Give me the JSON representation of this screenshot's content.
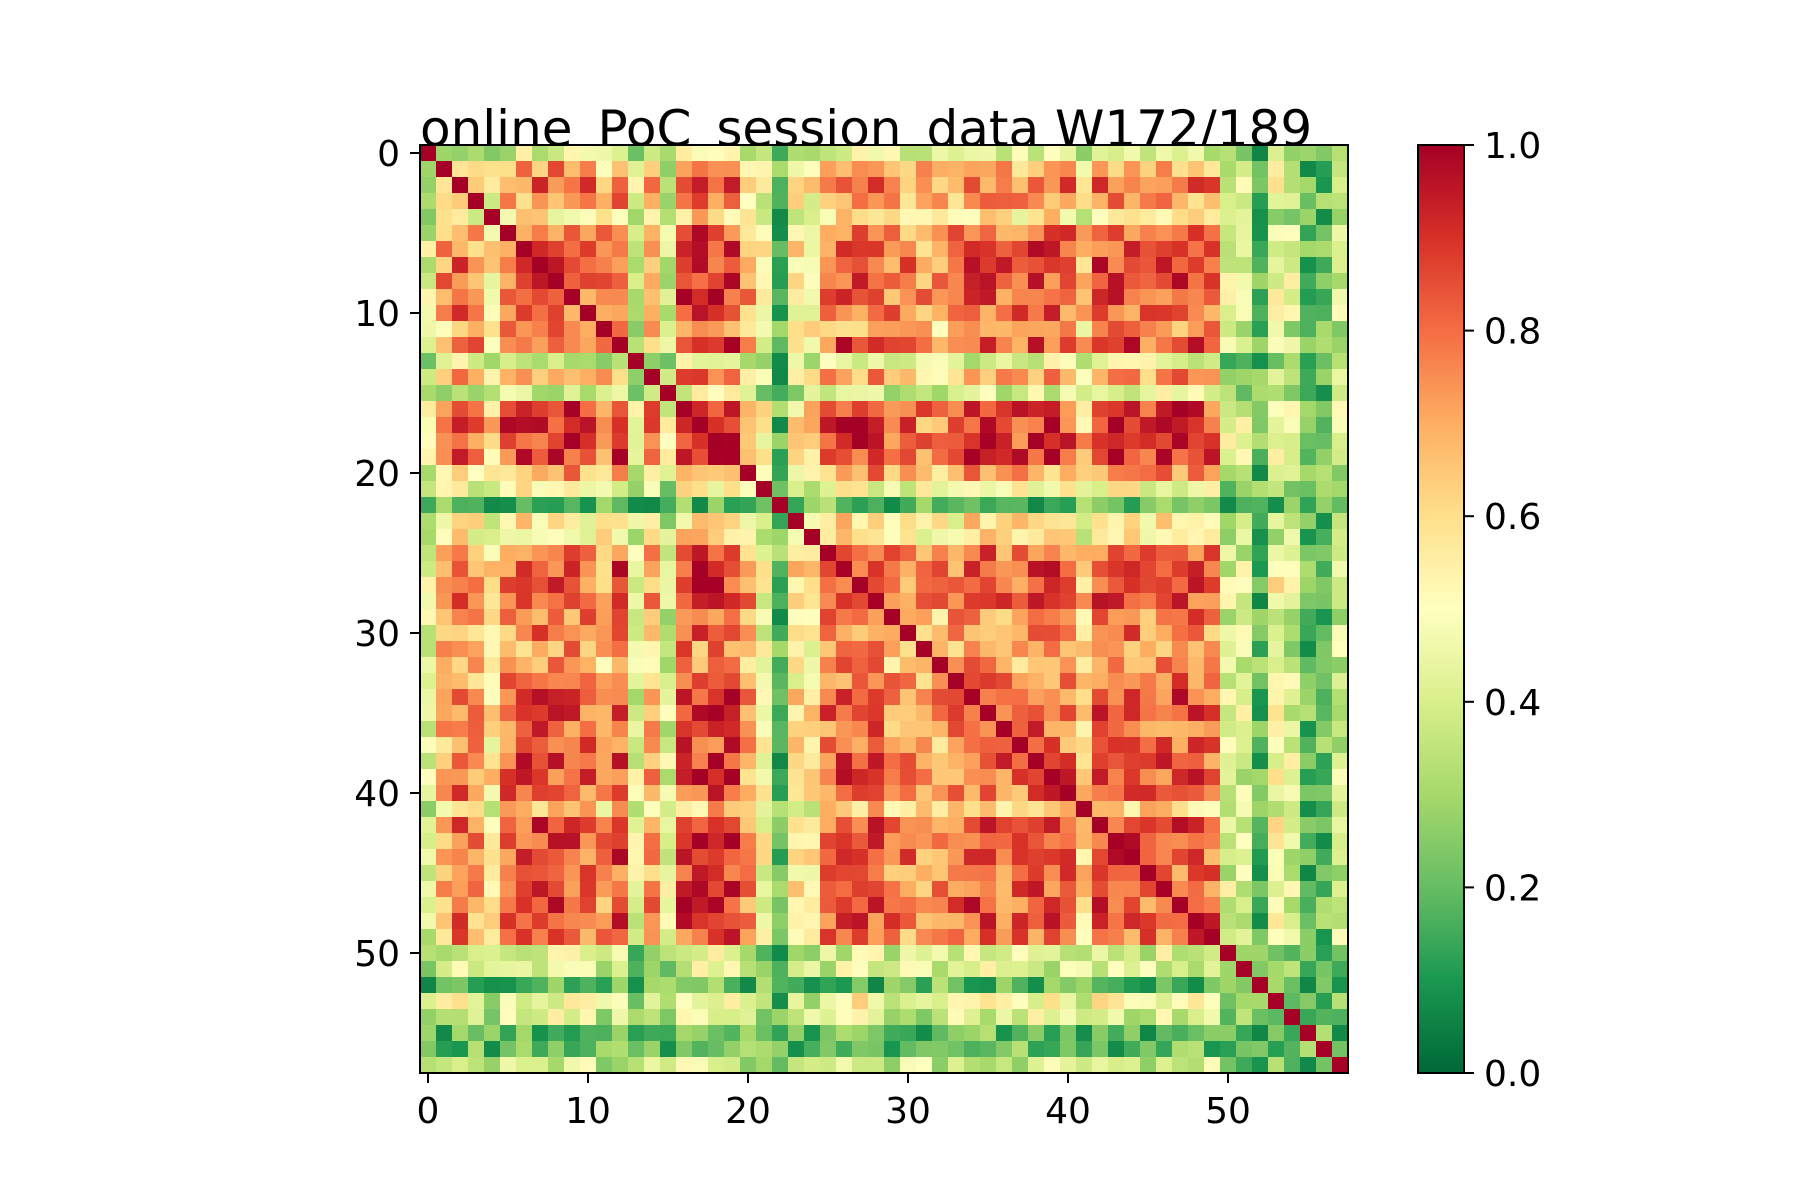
{
  "chart_data": {
    "type": "heatmap",
    "title": "online_PoC_session_data W172/189",
    "n": 58,
    "x_ticks": [
      0,
      10,
      20,
      30,
      40,
      50
    ],
    "y_ticks": [
      0,
      10,
      20,
      30,
      40,
      50
    ],
    "xlabel": "",
    "ylabel": "",
    "colormap": "RdYlGn_r",
    "value_range": [
      0.0,
      1.0
    ],
    "colorbar_ticks": [
      "0.0",
      "0.2",
      "0.4",
      "0.6",
      "0.8",
      "1.0"
    ],
    "diagonal_value": 1.0,
    "colormap_stops": [
      {
        "v": 0.0,
        "color": "#006837"
      },
      {
        "v": 0.1,
        "color": "#1a9850"
      },
      {
        "v": 0.2,
        "color": "#66bd63"
      },
      {
        "v": 0.3,
        "color": "#a6d96a"
      },
      {
        "v": 0.4,
        "color": "#d9ef8b"
      },
      {
        "v": 0.5,
        "color": "#ffffbf"
      },
      {
        "v": 0.6,
        "color": "#fee08b"
      },
      {
        "v": 0.7,
        "color": "#fdae61"
      },
      {
        "v": 0.8,
        "color": "#f46d43"
      },
      {
        "v": 0.9,
        "color": "#d73027"
      },
      {
        "v": 1.0,
        "color": "#a50026"
      }
    ],
    "group_weights": [
      0.1,
      0.6,
      0.8,
      0.6,
      0.3,
      0.8,
      0.9,
      0.9,
      0.9,
      0.9,
      0.8,
      0.6,
      0.9,
      0.1,
      0.6,
      0.1,
      1.0,
      1.0,
      1.0,
      1.0,
      0.6,
      0.2,
      0.0,
      0.3,
      0.3,
      0.8,
      0.9,
      0.9,
      0.9,
      0.7,
      0.7,
      0.6,
      0.6,
      0.7,
      0.9,
      0.9,
      0.8,
      0.8,
      0.9,
      0.9,
      0.8,
      0.4,
      0.9,
      0.9,
      0.9,
      0.8,
      0.9,
      0.9,
      0.9,
      0.8,
      0.1,
      0.1,
      0.0,
      0.2,
      0.1,
      0.0,
      0.0,
      0.1
    ]
  }
}
